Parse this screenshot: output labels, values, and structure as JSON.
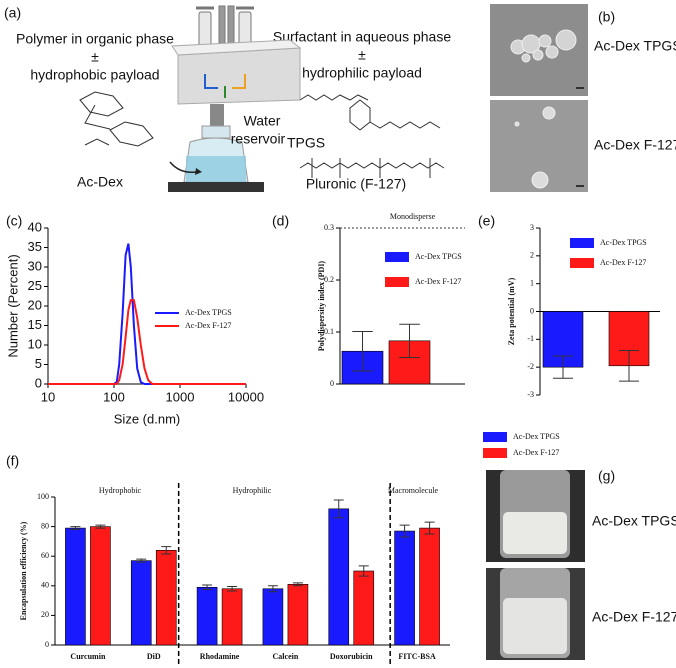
{
  "panels": {
    "a": {
      "label": "(a)",
      "left": [
        "Polymer in organic phase",
        "±",
        "hydrophobic payload"
      ],
      "right": [
        "Surfactant in aqueous phase",
        "±",
        "hydrophilic payload"
      ],
      "reservoir": [
        "Water",
        "reservoir"
      ],
      "polymer": "Ac-Dex",
      "surfactant_1": "TPGS",
      "surfactant_2": "Pluronic (F-127)"
    },
    "b": {
      "label": "(b)",
      "images": [
        "Ac-Dex TPGS",
        "Ac-Dex F-127"
      ]
    },
    "g": {
      "label": "(g)",
      "images": [
        "Ac-Dex TPGS",
        "Ac-Dex F-127"
      ]
    }
  },
  "chart_data": [
    {
      "type": "line",
      "panel_label": "(c)",
      "x_label": "Size (d.nm)",
      "y_label": "Number (Percent)",
      "x": [
        10,
        100,
        110,
        120,
        135,
        150,
        165,
        180,
        200,
        225,
        255,
        290,
        330,
        380,
        440,
        500,
        1000,
        10000
      ],
      "xlim": [
        10,
        10000
      ],
      "xticks": [
        10,
        100,
        1000,
        10000
      ],
      "log_x": true,
      "ylim": [
        0,
        40
      ],
      "yticks": [
        0,
        5,
        10,
        15,
        20,
        25,
        30,
        35,
        40
      ],
      "legend": "right",
      "series": [
        {
          "name": "Ac-Dex TPGS",
          "color": "#1a1aff",
          "values": [
            0,
            0,
            0.5,
            5,
            18,
            33,
            36,
            30,
            15,
            4,
            0.5,
            0,
            0,
            0,
            0,
            0,
            0,
            0
          ]
        },
        {
          "name": "Ac-Dex F-127",
          "color": "#ff1a1a",
          "values": [
            0,
            0,
            0,
            1,
            5,
            12,
            19,
            21.5,
            21.5,
            17,
            10,
            4,
            1,
            0,
            0,
            0,
            0,
            0
          ]
        }
      ]
    },
    {
      "type": "bar",
      "panel_label": "(d)",
      "y_label": "Polydispersity index (PDI)",
      "categories": [
        null
      ],
      "ylim": [
        0,
        0.3
      ],
      "yticks": [
        0,
        0.1,
        0.2,
        0.3
      ],
      "reference_line": {
        "label": "Monodisperse",
        "value": 0.3
      },
      "series": [
        {
          "name": "Ac-Dex TPGS",
          "color": "#1a1aff",
          "values": [
            0.063
          ],
          "errors": [
            0.038
          ]
        },
        {
          "name": "Ac-Dex F-127",
          "color": "#ff1a1a",
          "values": [
            0.083
          ],
          "errors": [
            0.032
          ]
        }
      ]
    },
    {
      "type": "bar",
      "panel_label": "(e)",
      "y_label": "Zeta potential (mV)",
      "categories": [
        null
      ],
      "ylim": [
        -3,
        3
      ],
      "yticks": [
        -3,
        -2,
        -1,
        0,
        1,
        2,
        3
      ],
      "series": [
        {
          "name": "Ac-Dex TPGS",
          "color": "#1a1aff",
          "values": [
            -2.0
          ],
          "errors": [
            0.4
          ]
        },
        {
          "name": "Ac-Dex F-127",
          "color": "#ff1a1a",
          "values": [
            -1.95
          ],
          "errors": [
            0.55
          ]
        }
      ]
    },
    {
      "type": "bar",
      "panel_label": "(f)",
      "y_label": "Encapsulation efficiency (%)",
      "categories": [
        "Curcumin",
        "DiD",
        "Rhodamine",
        "Calcein",
        "Doxorubicin",
        "FITC-BSA"
      ],
      "sections": [
        "Hydrophobic",
        "Hydrophilic",
        "Macromolecule"
      ],
      "ylim": [
        0,
        100
      ],
      "yticks": [
        0,
        20,
        40,
        60,
        80,
        100
      ],
      "series": [
        {
          "name": "Ac-Dex TPGS",
          "color": "#1a1aff",
          "values": [
            79,
            57,
            39,
            38,
            92,
            77
          ],
          "errors": [
            1,
            1,
            1.5,
            2,
            6,
            4
          ]
        },
        {
          "name": "Ac-Dex F-127",
          "color": "#ff1a1a",
          "values": [
            80,
            64,
            38,
            41,
            50,
            79
          ],
          "errors": [
            1,
            2.5,
            1.5,
            1,
            3.5,
            4
          ]
        }
      ]
    }
  ]
}
